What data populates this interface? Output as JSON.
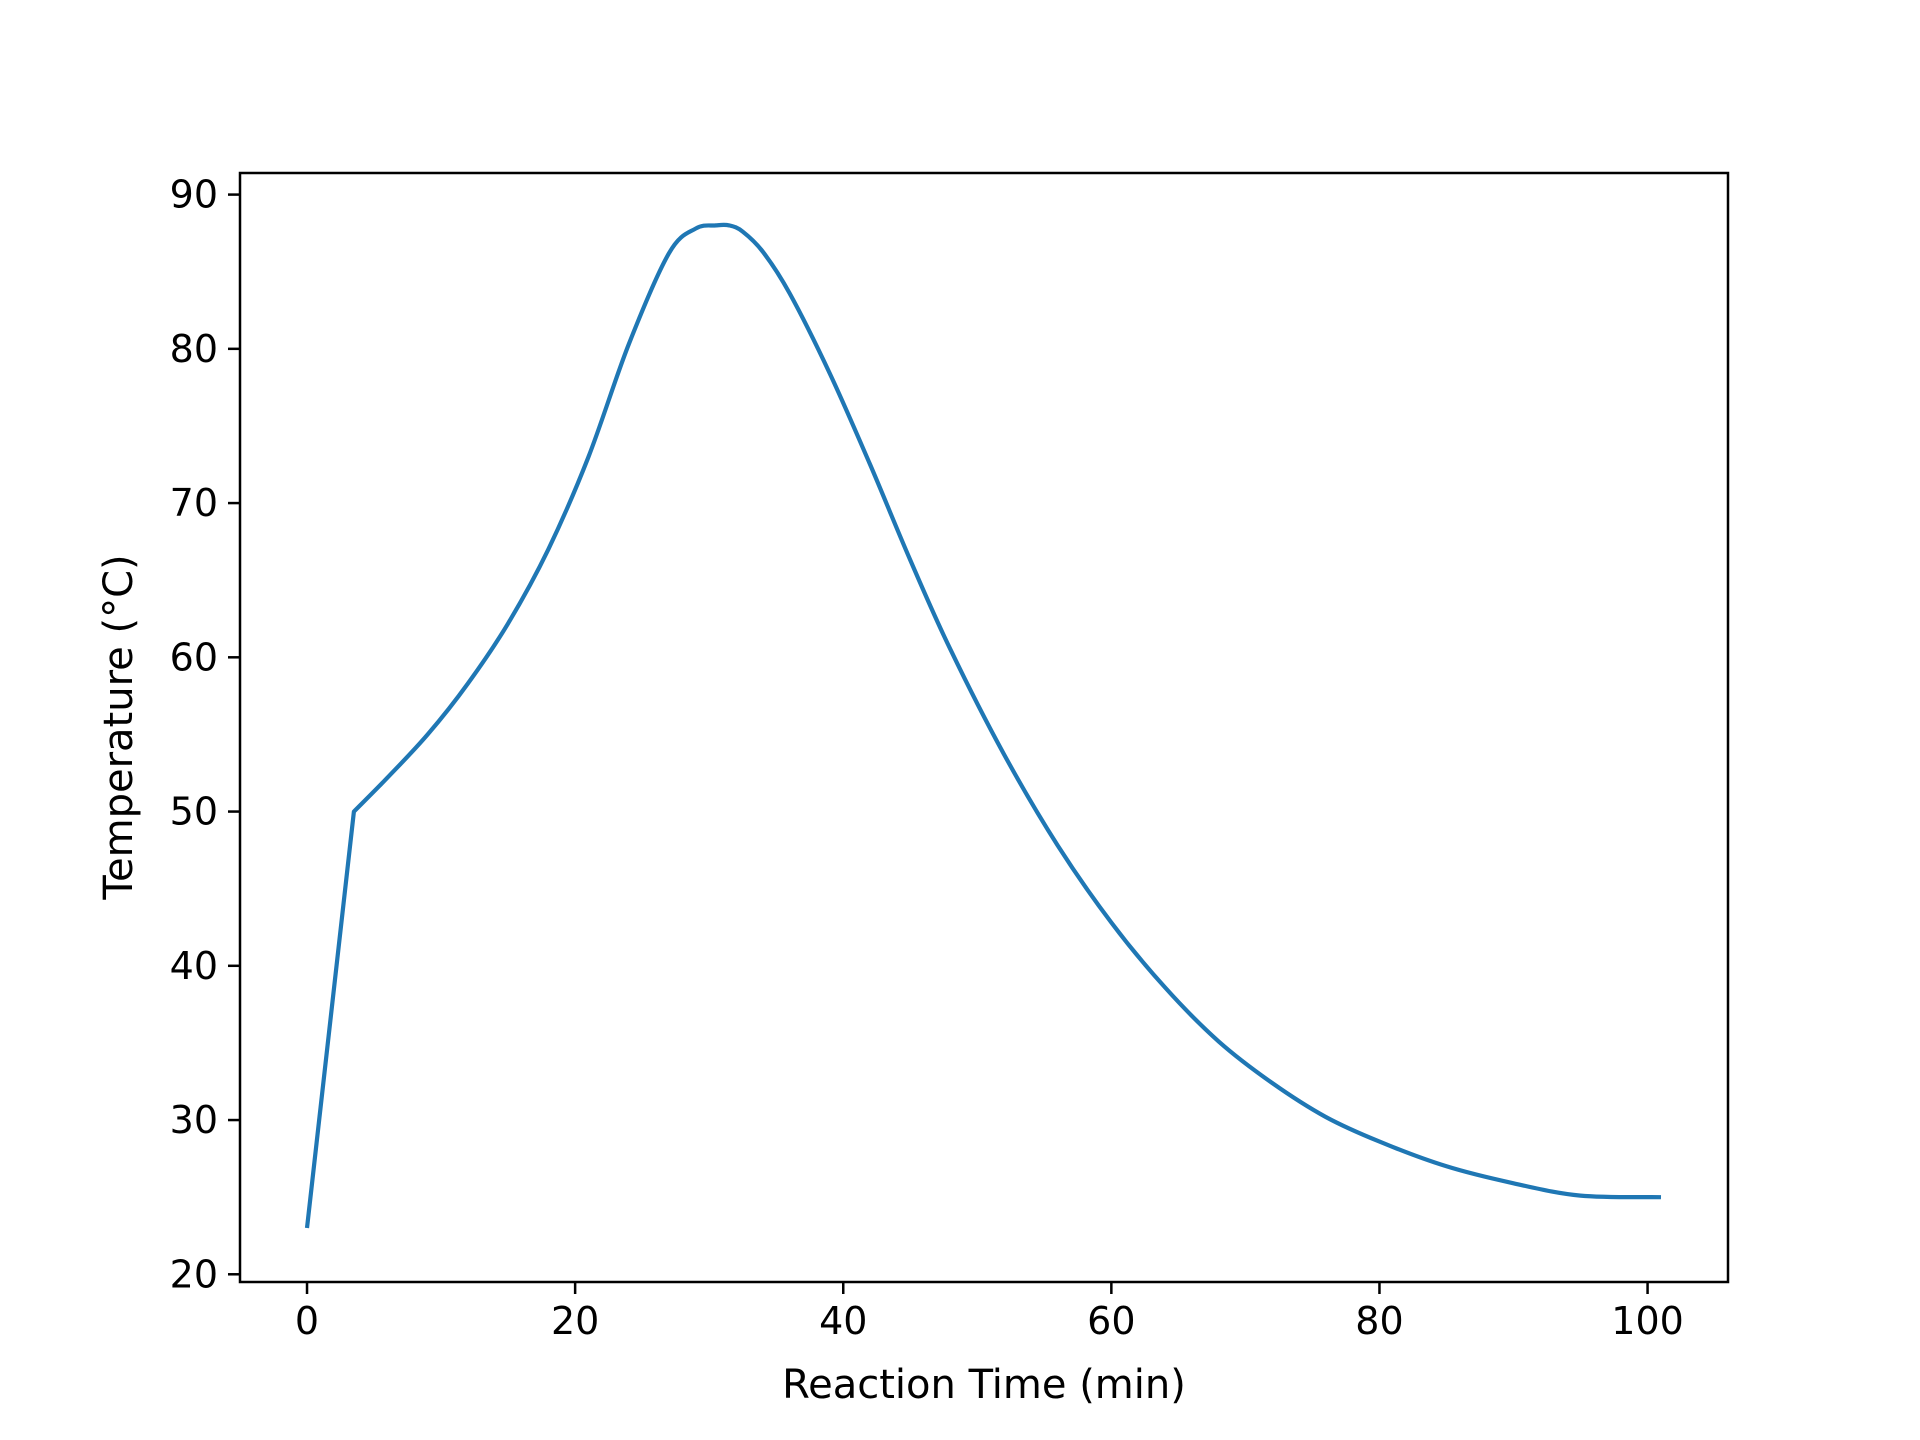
{
  "chart_data": {
    "type": "line",
    "title": "",
    "xlabel": "Reaction Time (min)",
    "ylabel": "Temperature (°C)",
    "xlim": [
      -5,
      106
    ],
    "ylim": [
      19.5,
      91.4
    ],
    "xticks": [
      0,
      20,
      40,
      60,
      80,
      100
    ],
    "yticks": [
      20,
      30,
      40,
      50,
      60,
      70,
      80,
      90
    ],
    "grid": false,
    "legend": "none",
    "series": [
      {
        "color": "#1f77b4",
        "x": [
          0,
          3.5,
          6,
          9,
          12,
          15,
          18,
          21,
          24,
          27,
          29,
          30.5,
          31.5,
          32.5,
          34,
          36,
          39,
          42,
          45,
          48,
          52,
          56,
          60,
          64,
          68,
          72,
          76,
          80,
          85,
          90,
          95,
          101
        ],
        "y": [
          23,
          50,
          52.2,
          55,
          58.3,
          62.2,
          67,
          73,
          80.3,
          86.2,
          87.8,
          88,
          88,
          87.6,
          86.3,
          83.6,
          78.4,
          72.5,
          66.3,
          60.5,
          53.7,
          47.8,
          42.8,
          38.6,
          35.1,
          32.4,
          30.2,
          28.6,
          27,
          25.9,
          25.1,
          25
        ]
      }
    ]
  }
}
